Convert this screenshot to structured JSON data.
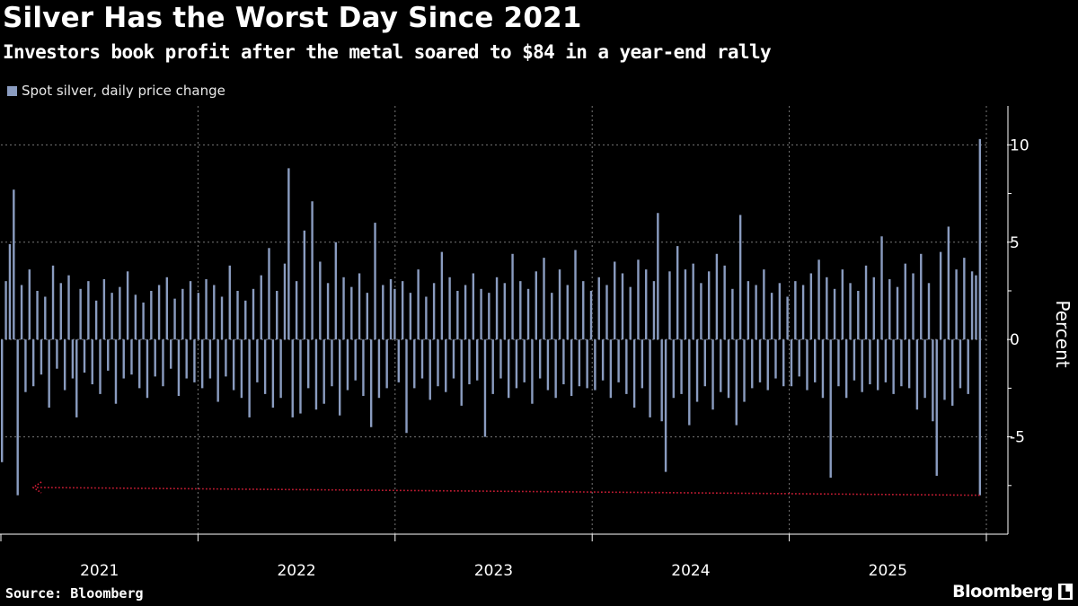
{
  "chart_data": {
    "type": "bar",
    "title": "Silver Has the Worst Day Since 2021",
    "subtitle": "Investors book profit after the metal soared to $84 in a year-end rally",
    "legend": [
      "Spot silver, daily price change"
    ],
    "legend_placement": "top-left",
    "ylabel": "Percent",
    "xlabel": "",
    "ylim": [
      -10,
      12
    ],
    "yticks": [
      -5,
      0,
      5,
      10
    ],
    "ytick_labels": [
      "-5",
      "0",
      "5",
      "10"
    ],
    "xtick_labels": [
      "2021",
      "2022",
      "2023",
      "2024",
      "2025"
    ],
    "grid": true,
    "series_color": "#8a9cc0",
    "annotation_color": "#e0203a",
    "series": [
      {
        "name": "Spot silver, daily price change",
        "values": [
          -6.3,
          3.0,
          4.9,
          7.7,
          -8.0,
          2.8,
          -2.7,
          3.6,
          -2.4,
          2.5,
          -1.8,
          2.2,
          -3.5,
          3.8,
          -1.5,
          2.9,
          -2.6,
          3.3,
          -2.0,
          -4.0,
          2.6,
          -1.7,
          3.0,
          -2.3,
          2.0,
          -2.8,
          3.1,
          -1.6,
          2.4,
          -3.3,
          2.7,
          -2.0,
          3.5,
          -1.8,
          2.3,
          -2.5,
          1.9,
          -3.0,
          2.5,
          -1.9,
          2.8,
          -2.4,
          3.2,
          -1.5,
          2.1,
          -2.9,
          2.6,
          -2.0,
          3.0,
          -2.2,
          2.4,
          -2.5,
          3.1,
          -2.0,
          2.8,
          -3.2,
          2.2,
          -1.9,
          3.8,
          -2.6,
          2.5,
          -3.0,
          2.0,
          -4.0,
          2.6,
          -2.2,
          3.3,
          -2.8,
          4.7,
          -3.5,
          2.5,
          -3.0,
          3.9,
          8.8,
          -4.0,
          3.0,
          -3.8,
          5.6,
          -2.5,
          7.1,
          -3.6,
          4.0,
          -3.3,
          2.9,
          -2.4,
          5.0,
          -3.9,
          3.2,
          -2.6,
          2.7,
          -2.1,
          3.4,
          -2.9,
          2.4,
          -4.5,
          6.0,
          -3.0,
          2.8,
          -2.5,
          3.1,
          2.6,
          -2.2,
          3.0,
          -4.8,
          2.4,
          -2.5,
          3.6,
          -2.0,
          2.2,
          -3.1,
          2.9,
          -2.4,
          4.5,
          -2.7,
          3.2,
          -2.0,
          2.5,
          -3.4,
          2.8,
          -2.3,
          3.4,
          -2.1,
          2.6,
          -5.0,
          2.4,
          -2.8,
          3.2,
          -2.0,
          2.9,
          -3.0,
          4.4,
          -2.5,
          3.0,
          -2.2,
          2.6,
          -3.3,
          3.5,
          -2.0,
          4.2,
          -2.6,
          2.4,
          -3.0,
          3.6,
          -2.3,
          2.8,
          -2.9,
          4.6,
          -2.4,
          3.0,
          -2.5,
          2.5,
          -2.6,
          3.2,
          -2.1,
          2.8,
          -3.0,
          4.0,
          -2.2,
          3.4,
          -2.8,
          2.7,
          -3.5,
          4.1,
          -2.5,
          3.6,
          -4.0,
          3.0,
          6.5,
          -4.2,
          -6.8,
          3.5,
          -3.0,
          4.8,
          -2.8,
          3.6,
          -4.4,
          3.9,
          -3.2,
          2.9,
          -2.4,
          3.5,
          -3.6,
          4.4,
          -2.7,
          3.8,
          -3.0,
          2.6,
          -4.4,
          6.4,
          -3.2,
          3.0,
          -2.5,
          2.8,
          -2.2,
          3.6,
          -2.6,
          2.4,
          -2.0,
          2.9,
          -2.4,
          2.2,
          -2.4,
          3.0,
          -1.9,
          2.8,
          -2.6,
          3.4,
          -2.2,
          4.1,
          -3.0,
          3.2,
          -7.1,
          2.6,
          -2.4,
          3.6,
          -3.0,
          2.9,
          -2.1,
          2.5,
          -2.7,
          3.8,
          -2.3,
          3.2,
          -2.6,
          5.3,
          -2.2,
          3.1,
          -2.8,
          2.7,
          -2.4,
          3.9,
          -2.5,
          3.4,
          -3.6,
          4.4,
          -3.0,
          2.9,
          -4.2,
          -7.0,
          4.5,
          -3.1,
          5.8,
          -3.4,
          3.6,
          -2.5,
          4.2,
          -2.8,
          3.5,
          3.3,
          10.3,
          -8.0
        ]
      }
    ]
  },
  "footer": {
    "source": "Source: Bloomberg",
    "logo": "Bloomberg"
  }
}
